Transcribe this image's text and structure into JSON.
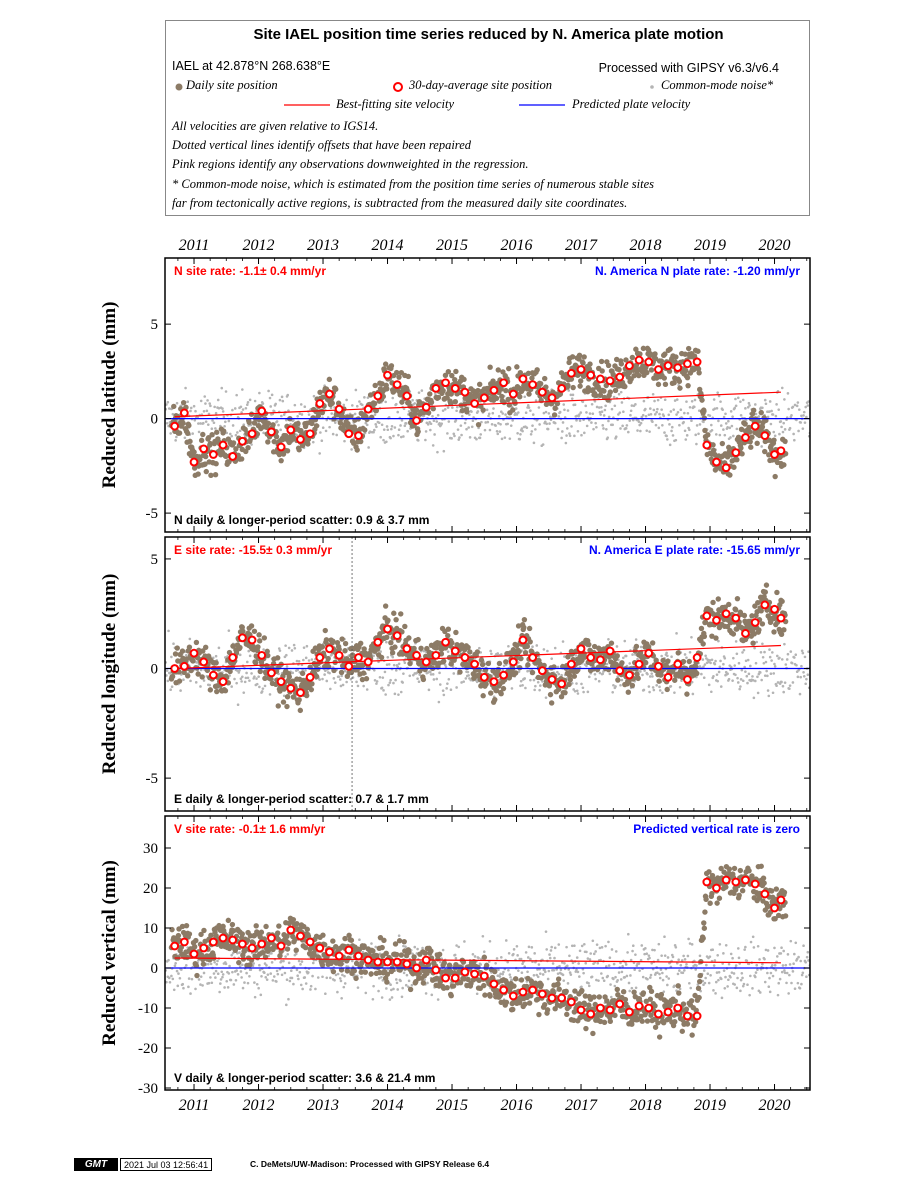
{
  "legend": {
    "title": "Site IAEL position time series reduced by N. America plate motion",
    "site_location": "IAEL at 42.878°N 268.638°E",
    "processing": "Processed with GIPSY v6.3/v6.4",
    "daily_label": "Daily site position",
    "avg30_label": "30-day-average site position",
    "cm_noise_label": "Common-mode noise*",
    "best_fit_label": "Best-fitting site velocity",
    "plate_label": "Predicted plate velocity",
    "note1": "All velocities are given relative to IGS14.",
    "note2": "Dotted vertical lines identify offsets that have been repaired",
    "note3": "Pink regions identify any observations downweighted in the regression.",
    "note4": "* Common-mode noise, which is estimated from the position time series of numerous stable sites",
    "note5": "far from tectonically active regions, is subtracted from the measured daily site coordinates.",
    "colors": {
      "daily": "#8c7b66",
      "avg30": "#ff0000",
      "cm_noise": "#b4b4b4",
      "best_fit": "#ff0000",
      "plate": "#0000ff"
    }
  },
  "chart_data": [
    {
      "type": "scatter",
      "component": "N",
      "ylabel": "Reduced latitude (mm)",
      "ylim": [
        -6,
        8.5
      ],
      "yticks": [
        -5,
        0,
        5
      ],
      "xlim": [
        2010.55,
        2020.55
      ],
      "xticks": [
        2011,
        2012,
        2013,
        2014,
        2015,
        2016,
        2017,
        2018,
        2019,
        2020
      ],
      "site_rate": "N site rate:  -1.1± 0.4 mm/yr",
      "plate_rate": "N. America N plate rate: -1.20 mm/yr",
      "scatter_text": "N daily & longer-period scatter:   0.9 &   3.7 mm",
      "fit_line": {
        "x": [
          2010.7,
          2020.1
        ],
        "y": [
          0.1,
          1.4
        ]
      },
      "plate_line_y": 0,
      "offsets": [],
      "avg30": {
        "x": [
          2010.7,
          2010.85,
          2011.0,
          2011.15,
          2011.3,
          2011.45,
          2011.6,
          2011.75,
          2011.9,
          2012.05,
          2012.2,
          2012.35,
          2012.5,
          2012.65,
          2012.8,
          2012.95,
          2013.1,
          2013.25,
          2013.4,
          2013.55,
          2013.7,
          2013.85,
          2014.0,
          2014.15,
          2014.3,
          2014.45,
          2014.6,
          2014.75,
          2014.9,
          2015.05,
          2015.2,
          2015.35,
          2015.5,
          2015.65,
          2015.8,
          2015.95,
          2016.1,
          2016.25,
          2016.4,
          2016.55,
          2016.7,
          2016.85,
          2017.0,
          2017.15,
          2017.3,
          2017.45,
          2017.6,
          2017.75,
          2017.9,
          2018.05,
          2018.2,
          2018.35,
          2018.5,
          2018.65,
          2018.8,
          2018.95,
          2019.1,
          2019.25,
          2019.4,
          2019.55,
          2019.7,
          2019.85,
          2020.0,
          2020.1
        ],
        "y": [
          -0.4,
          0.3,
          -2.3,
          -1.6,
          -1.9,
          -1.4,
          -2.0,
          -1.2,
          -0.8,
          0.4,
          -0.7,
          -1.5,
          -0.6,
          -1.1,
          -0.8,
          0.8,
          1.3,
          0.5,
          -0.8,
          -0.9,
          0.5,
          1.2,
          2.3,
          1.8,
          1.2,
          -0.1,
          0.6,
          1.6,
          1.9,
          1.6,
          1.4,
          0.8,
          1.1,
          1.5,
          1.9,
          1.3,
          2.1,
          1.8,
          1.4,
          1.1,
          1.6,
          2.4,
          2.6,
          2.3,
          2.1,
          2.0,
          2.2,
          2.8,
          3.1,
          3.0,
          2.6,
          2.8,
          2.7,
          2.9,
          3.0,
          -1.4,
          -2.3,
          -2.6,
          -1.8,
          -1.0,
          -0.4,
          -0.9,
          -1.9,
          -1.7
        ]
      }
    },
    {
      "type": "scatter",
      "component": "E",
      "ylabel": "Reduced longitude (mm)",
      "ylim": [
        -6.5,
        6
      ],
      "yticks": [
        -5,
        0,
        5
      ],
      "xlim": [
        2010.55,
        2020.55
      ],
      "xticks": [
        2011,
        2012,
        2013,
        2014,
        2015,
        2016,
        2017,
        2018,
        2019,
        2020
      ],
      "site_rate": "E site rate:  -15.5± 0.3 mm/yr",
      "plate_rate": "N. America E plate rate: -15.65 mm/yr",
      "scatter_text": "E daily & longer-period scatter:   0.7 &   1.7 mm",
      "fit_line": {
        "x": [
          2010.7,
          2020.1
        ],
        "y": [
          0.0,
          1.05
        ]
      },
      "plate_line_y": 0,
      "offsets": [
        2013.45
      ],
      "avg30": {
        "x": [
          2010.7,
          2010.85,
          2011.0,
          2011.15,
          2011.3,
          2011.45,
          2011.6,
          2011.75,
          2011.9,
          2012.05,
          2012.2,
          2012.35,
          2012.5,
          2012.65,
          2012.8,
          2012.95,
          2013.1,
          2013.25,
          2013.4,
          2013.55,
          2013.7,
          2013.85,
          2014.0,
          2014.15,
          2014.3,
          2014.45,
          2014.6,
          2014.75,
          2014.9,
          2015.05,
          2015.2,
          2015.35,
          2015.5,
          2015.65,
          2015.8,
          2015.95,
          2016.1,
          2016.25,
          2016.4,
          2016.55,
          2016.7,
          2016.85,
          2017.0,
          2017.15,
          2017.3,
          2017.45,
          2017.6,
          2017.75,
          2017.9,
          2018.05,
          2018.2,
          2018.35,
          2018.5,
          2018.65,
          2018.8,
          2018.95,
          2019.1,
          2019.25,
          2019.4,
          2019.55,
          2019.7,
          2019.85,
          2020.0,
          2020.1
        ],
        "y": [
          0.0,
          0.1,
          0.7,
          0.3,
          -0.3,
          -0.6,
          0.5,
          1.4,
          1.3,
          0.6,
          -0.2,
          -0.6,
          -0.9,
          -1.1,
          -0.4,
          0.5,
          0.9,
          0.6,
          0.1,
          0.5,
          0.3,
          1.2,
          1.8,
          1.5,
          0.9,
          0.6,
          0.3,
          0.6,
          1.2,
          0.8,
          0.5,
          0.2,
          -0.4,
          -0.6,
          -0.3,
          0.3,
          1.3,
          0.5,
          -0.1,
          -0.5,
          -0.7,
          0.2,
          0.9,
          0.5,
          0.4,
          0.8,
          -0.1,
          -0.3,
          0.2,
          0.7,
          0.1,
          -0.4,
          0.2,
          -0.5,
          0.5,
          2.4,
          2.2,
          2.5,
          2.3,
          1.6,
          2.1,
          2.9,
          2.7,
          2.3
        ]
      }
    },
    {
      "type": "scatter",
      "component": "V",
      "ylabel": "Reduced vertical (mm)",
      "ylim": [
        -30.5,
        38
      ],
      "yticks": [
        -30,
        -20,
        -10,
        0,
        10,
        20,
        30
      ],
      "xlim": [
        2010.55,
        2020.55
      ],
      "xticks": [
        2011,
        2012,
        2013,
        2014,
        2015,
        2016,
        2017,
        2018,
        2019,
        2020
      ],
      "site_rate": "V site rate:  -0.1± 1.6 mm/yr",
      "plate_rate": "Predicted vertical rate is zero",
      "scatter_text": "V daily & longer-period scatter:   3.6 &  21.4 mm",
      "fit_line": {
        "x": [
          2010.7,
          2020.1
        ],
        "y": [
          2.5,
          1.3
        ]
      },
      "plate_line_y": 0,
      "offsets": [],
      "avg30": {
        "x": [
          2010.7,
          2010.85,
          2011.0,
          2011.15,
          2011.3,
          2011.45,
          2011.6,
          2011.75,
          2011.9,
          2012.05,
          2012.2,
          2012.35,
          2012.5,
          2012.65,
          2012.8,
          2012.95,
          2013.1,
          2013.25,
          2013.4,
          2013.55,
          2013.7,
          2013.85,
          2014.0,
          2014.15,
          2014.3,
          2014.45,
          2014.6,
          2014.75,
          2014.9,
          2015.05,
          2015.2,
          2015.35,
          2015.5,
          2015.65,
          2015.8,
          2015.95,
          2016.1,
          2016.25,
          2016.4,
          2016.55,
          2016.7,
          2016.85,
          2017.0,
          2017.15,
          2017.3,
          2017.45,
          2017.6,
          2017.75,
          2017.9,
          2018.05,
          2018.2,
          2018.35,
          2018.5,
          2018.65,
          2018.8,
          2018.95,
          2019.1,
          2019.25,
          2019.4,
          2019.55,
          2019.7,
          2019.85,
          2020.0,
          2020.1
        ],
        "y": [
          5.5,
          6.5,
          3.5,
          5.0,
          6.5,
          7.5,
          7.0,
          6.0,
          5.0,
          6.0,
          7.5,
          5.5,
          9.5,
          8.0,
          6.5,
          5.0,
          4.0,
          3.0,
          4.5,
          3.0,
          2.0,
          1.5,
          1.5,
          1.5,
          1.0,
          0.0,
          2.0,
          -0.5,
          -2.5,
          -2.5,
          -1.0,
          -1.5,
          -2.0,
          -4.0,
          -5.5,
          -7.0,
          -6.0,
          -5.5,
          -6.5,
          -7.5,
          -7.5,
          -8.5,
          -10.5,
          -11.5,
          -10.0,
          -10.5,
          -9.0,
          -11.0,
          -9.5,
          -10.0,
          -11.5,
          -11.0,
          -10.0,
          -12.0,
          -12.0,
          21.5,
          20.0,
          22.0,
          21.5,
          22.0,
          21.0,
          18.5,
          15.0,
          17.0
        ]
      }
    }
  ],
  "footer": {
    "logo": "GMT",
    "timestamp": "2021 Jul 03 12:56:41",
    "credit": "C. DeMets/UW-Madison: Processed with GIPSY Release 6.4"
  }
}
